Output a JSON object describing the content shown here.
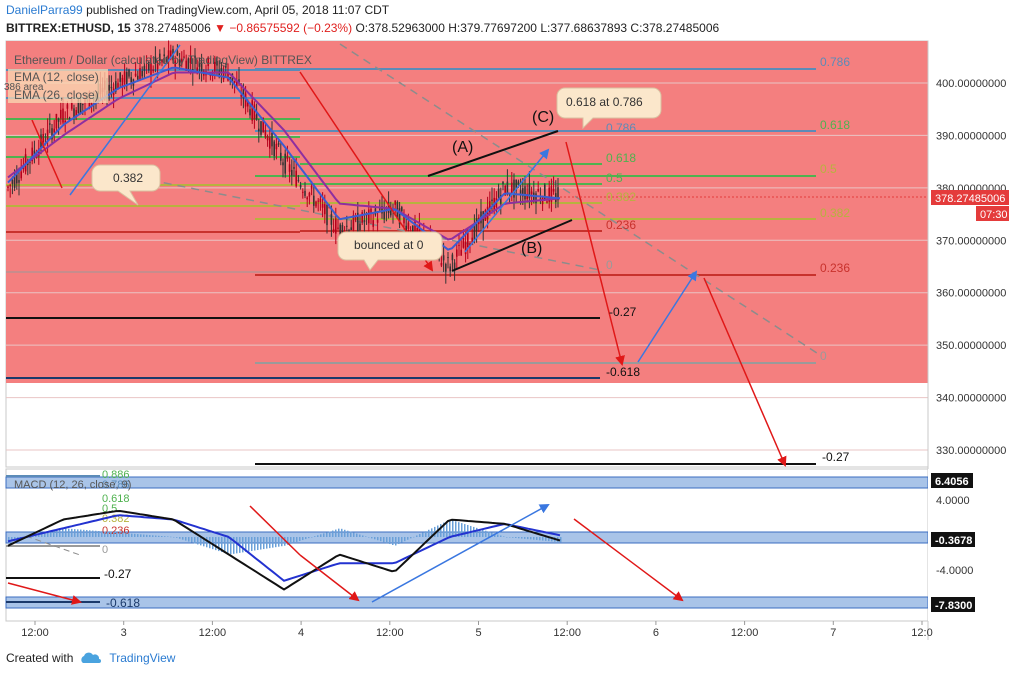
{
  "header": {
    "author": "DanielParra99",
    "published_text": "published on TradingView.com, April 05, 2018 11:07 CDT",
    "symbol": "BITTREX:ETHUSD, 15",
    "last": "378.27485006",
    "change": "▼ −0.86575592 (−0.23%)",
    "open": "O:378.52963000",
    "high": "H:379.77697200",
    "low": "L:377.68637893",
    "close": "C:378.27485006"
  },
  "legend": {
    "title": "Ethereum / Dollar (calculated by TradingView) BITTREX",
    "ema12": "EMA (12, close)",
    "ema26": "EMA (26, close)",
    "macd": "MACD (12, 26, close, 9)",
    "partial_fib": "386 area"
  },
  "colors": {
    "pink_zone": "#f47f7f",
    "ema12": "#3d5cd1",
    "ema26": "#8e2fa0",
    "candle_up": "#b5001b",
    "fib_blue": "#5b8bb8",
    "fib_green": "#4fb24f",
    "fib_olive": "#b7b23f",
    "fib_red": "#c8322d",
    "arrow_red": "#e01818",
    "arrow_blue": "#3a77e0",
    "price_label": "#e43b3b"
  },
  "price_axis": {
    "ticks": [
      "400.00000000",
      "390.00000000",
      "380.00000000",
      "370.00000000",
      "360.00000000",
      "350.00000000",
      "340.00000000",
      "330.00000000"
    ],
    "current_price": "378.27485006",
    "countdown": "07:30"
  },
  "time_axis": {
    "ticks": [
      "12:00",
      "3",
      "12:00",
      "4",
      "12:00",
      "5",
      "12:00",
      "6",
      "12:00",
      "7",
      "12:0"
    ]
  },
  "macd_axis": {
    "ticks": [
      "4.0000",
      "-4.0000"
    ],
    "badges": [
      "6.4056",
      "-0.3678",
      "-7.8300"
    ]
  },
  "fib_left": {
    "labels": [
      "0.382",
      "-0.27",
      "-0.618"
    ]
  },
  "fib_mid": {
    "labels": [
      "0.786",
      "0.618",
      "0.5",
      "0.382",
      "0.236",
      "0",
      "-0.27",
      "-0.618"
    ]
  },
  "fib_right": {
    "labels": [
      "0.786",
      "0.618",
      "0.5",
      "0.382",
      "0.236",
      "0",
      "-0.27"
    ]
  },
  "macd_fib": {
    "labels": [
      "0.886",
      "0.786",
      "0.618",
      "0.5",
      "0.382",
      "0.236",
      "0",
      "-0.27",
      "-0.618"
    ]
  },
  "annotations": {
    "callout_0382": "0.382",
    "callout_bounced": "bounced at 0",
    "callout_0618_0786": "0.618 at 0.786",
    "wave_a": "(A)",
    "wave_b": "(B)",
    "wave_c": "(C)"
  },
  "footer": {
    "created_with": "Created with",
    "brand": "TradingView"
  },
  "chart_data": {
    "type": "line",
    "title": "Ethereum / Dollar (calculated by TradingView) BITTREX",
    "ylim": [
      323,
      409
    ],
    "y_ticks": [
      330,
      340,
      350,
      360,
      370,
      380,
      390,
      400
    ],
    "series": [
      {
        "name": "Ethereum / Dollar",
        "x": [
          "3 00:00",
          "3 06:00",
          "3 12:00",
          "3 18:00",
          "4 00:00",
          "4 06:00",
          "4 12:00",
          "4 18:00",
          "5 00:00",
          "5 06:00",
          "5 11:00"
        ],
        "values": [
          380,
          394,
          400,
          405,
          402,
          385,
          372,
          376,
          365,
          380,
          378.27
        ]
      }
    ],
    "ema_fast": [
      381,
      392,
      399,
      403,
      401,
      388,
      374,
      376,
      368,
      379,
      378
    ],
    "ema_slow": [
      382,
      390,
      397,
      402,
      402,
      391,
      377,
      376,
      370,
      377,
      378
    ],
    "macd_line": [
      -1,
      2,
      3,
      2,
      -2,
      -6,
      -2,
      -4,
      2,
      1.5,
      -0.4
    ],
    "macd_signal": [
      -0.5,
      1,
      2.5,
      2,
      0,
      -5,
      -3,
      -3,
      0,
      1.5,
      0.2
    ],
    "current_price": 378.27485006
  }
}
